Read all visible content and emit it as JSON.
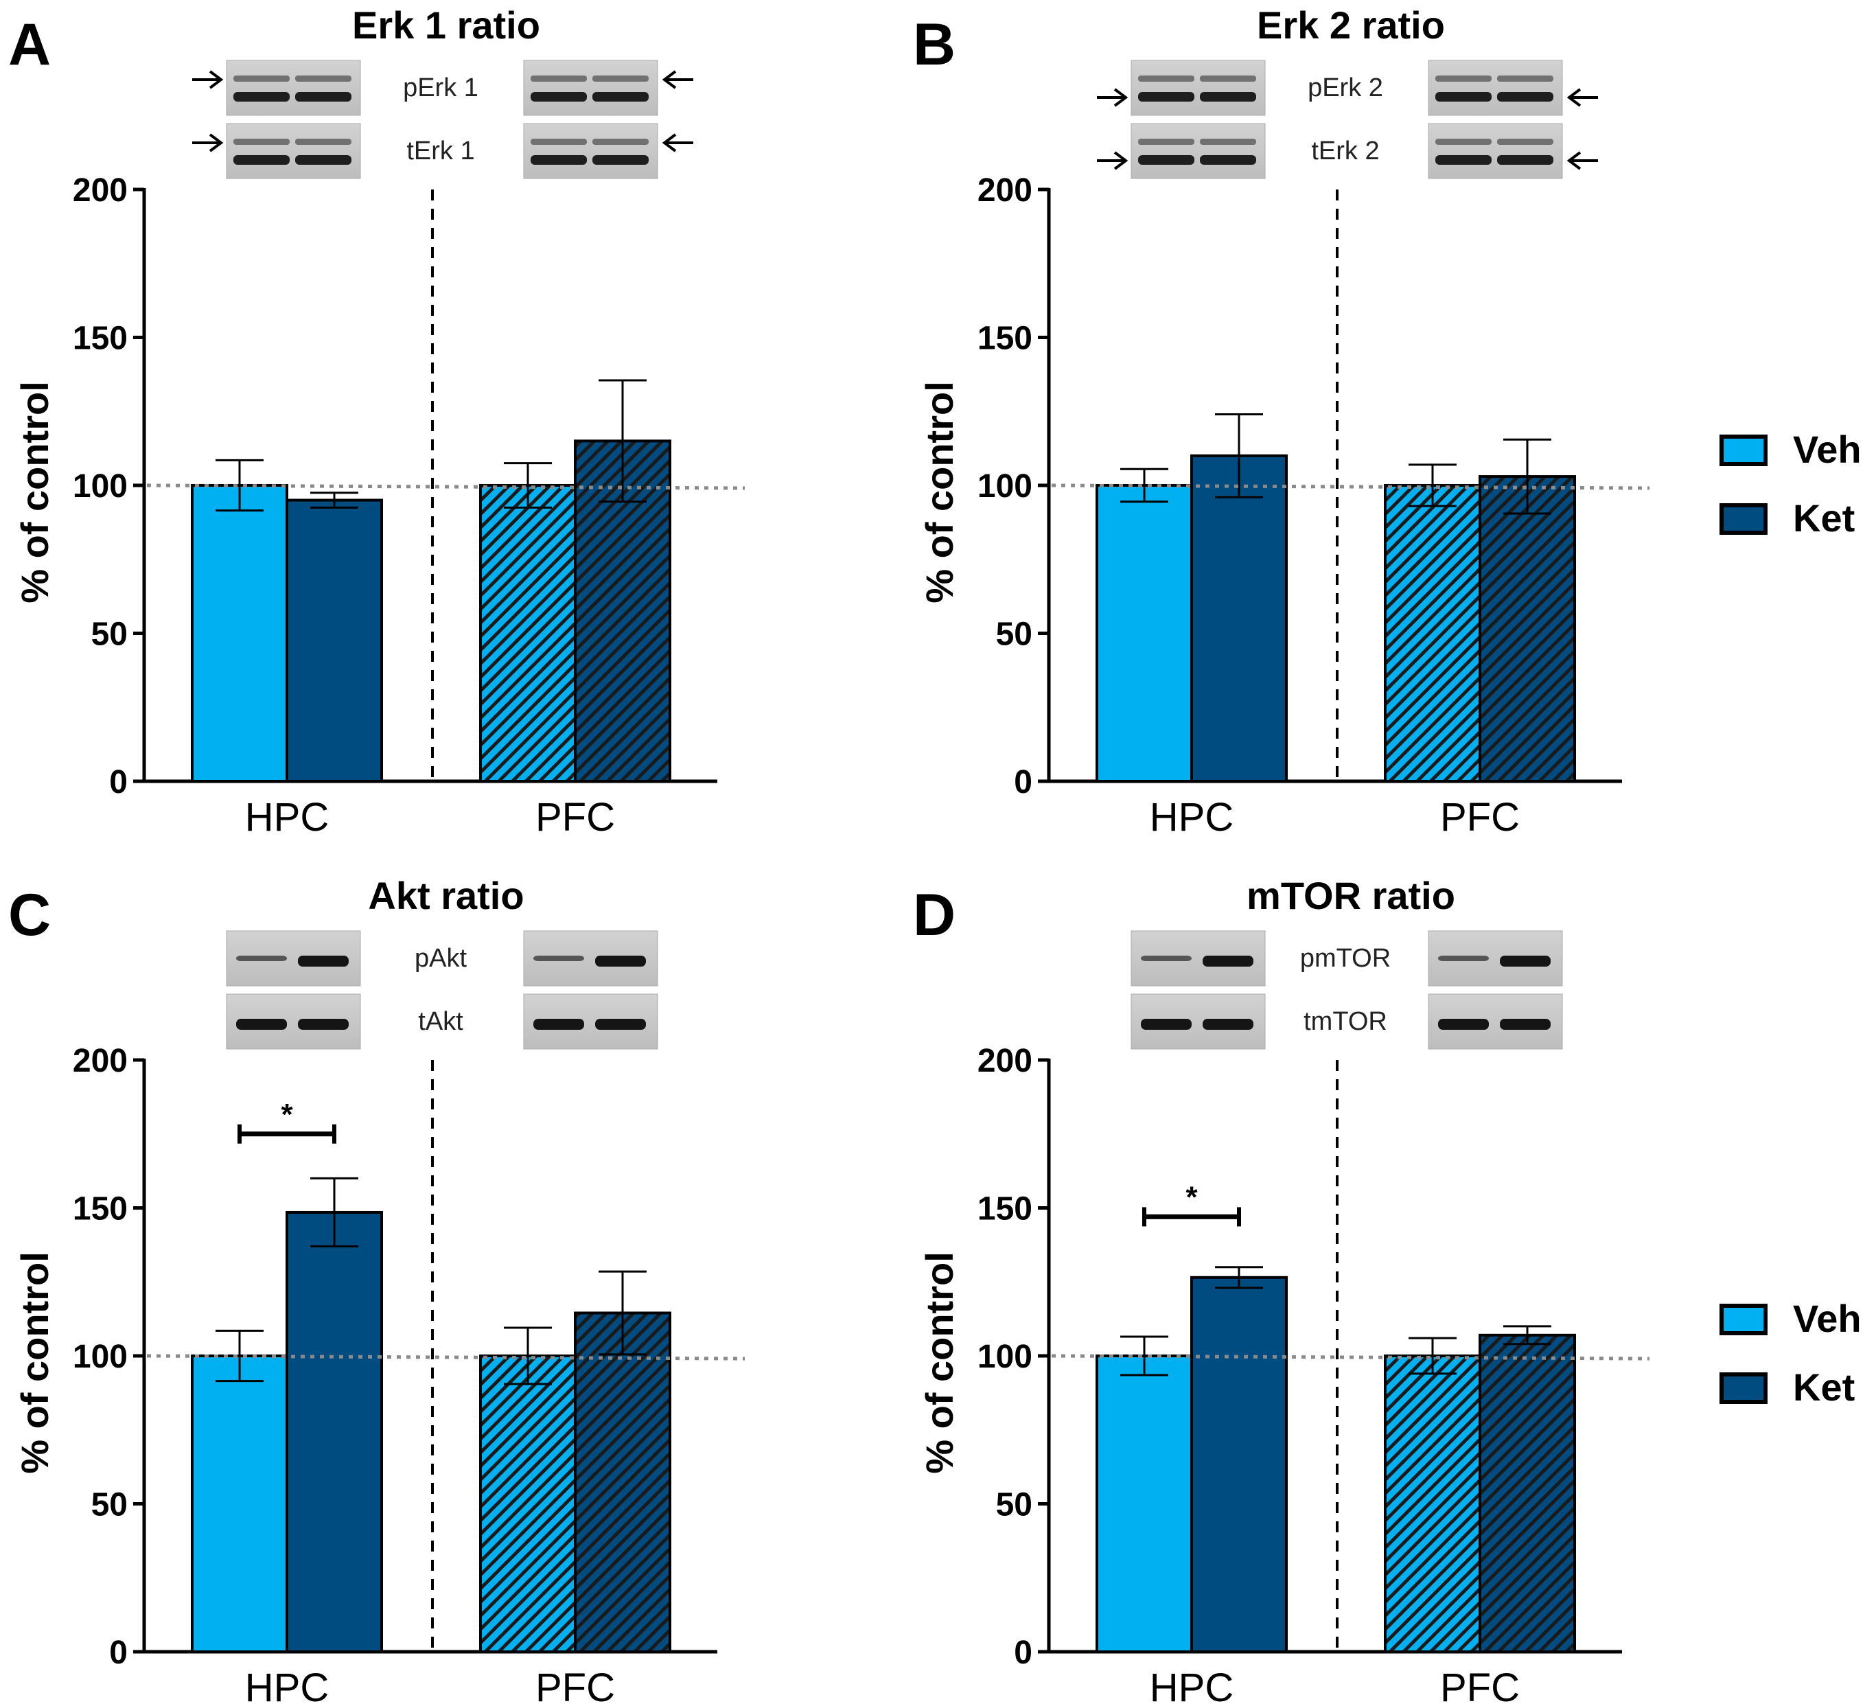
{
  "legend": {
    "entries": [
      {
        "label": "Veh",
        "color": "#00b0f0"
      },
      {
        "label": "Ket",
        "color": "#004b7f"
      }
    ]
  },
  "colors": {
    "veh": "#00b0f0",
    "ket": "#004b7f",
    "blot_bg": "#c9c9c9",
    "reference_line": "#8a8a8a"
  },
  "chart_data": [
    {
      "panel_letter": "A",
      "title": "Erk 1 ratio",
      "type": "bar",
      "categories": [
        "HPC",
        "PFC"
      ],
      "ylabel": "% of control",
      "ylim": [
        0,
        200
      ],
      "yticks": [
        "0",
        "50",
        "100",
        "150",
        "200"
      ],
      "reference_line": 100,
      "pfc_bars_hatched": true,
      "series": [
        {
          "name": "Veh",
          "values": [
            100,
            100
          ],
          "errors": [
            8.5,
            7.5
          ]
        },
        {
          "name": "Ket",
          "values": [
            95,
            115
          ],
          "errors": [
            2.5,
            20.5
          ]
        }
      ],
      "significance": [],
      "blots": {
        "labels": [
          "pErk 1",
          "tErk 1"
        ],
        "doublet": true,
        "arrows": "upper"
      }
    },
    {
      "panel_letter": "B",
      "title": "Erk 2 ratio",
      "type": "bar",
      "categories": [
        "HPC",
        "PFC"
      ],
      "ylabel": "% of control",
      "ylim": [
        0,
        200
      ],
      "yticks": [
        "0",
        "50",
        "100",
        "150",
        "200"
      ],
      "reference_line": 100,
      "pfc_bars_hatched": true,
      "series": [
        {
          "name": "Veh",
          "values": [
            100,
            100
          ],
          "errors": [
            5.5,
            7
          ]
        },
        {
          "name": "Ket",
          "values": [
            110,
            103
          ],
          "errors": [
            14,
            12.5
          ]
        }
      ],
      "significance": [],
      "blots": {
        "labels": [
          "pErk 2",
          "tErk 2"
        ],
        "doublet": true,
        "arrows": "lower"
      }
    },
    {
      "panel_letter": "C",
      "title": "Akt ratio",
      "type": "bar",
      "categories": [
        "HPC",
        "PFC"
      ],
      "ylabel": "% of control",
      "ylim": [
        0,
        200
      ],
      "yticks": [
        "0",
        "50",
        "100",
        "150",
        "200"
      ],
      "reference_line": 100,
      "pfc_bars_hatched": true,
      "series": [
        {
          "name": "Veh",
          "values": [
            100,
            100
          ],
          "errors": [
            8.5,
            9.5
          ]
        },
        {
          "name": "Ket",
          "values": [
            148.5,
            114.5
          ],
          "errors": [
            11.5,
            14
          ]
        }
      ],
      "significance": [
        {
          "category": "HPC",
          "label": "*",
          "y": 175
        }
      ],
      "blots": {
        "labels": [
          "pAkt",
          "tAkt"
        ],
        "doublet": false,
        "arrows": "none"
      }
    },
    {
      "panel_letter": "D",
      "title": "mTOR ratio",
      "type": "bar",
      "categories": [
        "HPC",
        "PFC"
      ],
      "ylabel": "% of control",
      "ylim": [
        0,
        200
      ],
      "yticks": [
        "0",
        "50",
        "100",
        "150",
        "200"
      ],
      "reference_line": 100,
      "pfc_bars_hatched": true,
      "series": [
        {
          "name": "Veh",
          "values": [
            100,
            100
          ],
          "errors": [
            6.5,
            6
          ]
        },
        {
          "name": "Ket",
          "values": [
            126.5,
            107
          ],
          "errors": [
            3.5,
            3
          ]
        }
      ],
      "significance": [
        {
          "category": "HPC",
          "label": "*",
          "y": 147
        }
      ],
      "blots": {
        "labels": [
          "pmTOR",
          "tmTOR"
        ],
        "doublet": false,
        "arrows": "none"
      }
    }
  ]
}
